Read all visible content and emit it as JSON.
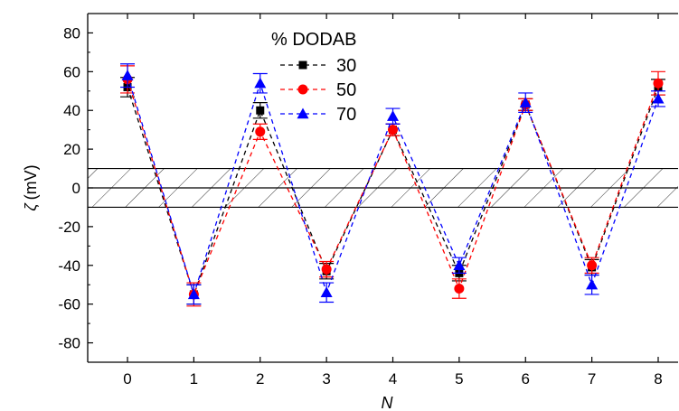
{
  "chart_data": {
    "type": "line",
    "xlabel": "N",
    "ylabel_symbol": "ζ",
    "ylabel_unit": "(mV)",
    "x": [
      0,
      1,
      2,
      3,
      4,
      5,
      6,
      7,
      8
    ],
    "xlim": [
      -0.6,
      8.3
    ],
    "ylim": [
      -90,
      90
    ],
    "x_ticks": [
      "0",
      "1",
      "2",
      "3",
      "4",
      "5",
      "6",
      "7",
      "8"
    ],
    "y_ticks": [
      "80",
      "60",
      "40",
      "20",
      "0",
      "-20",
      "-40",
      "-60",
      "-80"
    ],
    "grid": false,
    "band": {
      "from": -10,
      "to": 10,
      "style": "hatched"
    },
    "legend": {
      "title": "% DODAB",
      "placement": "top-center"
    },
    "series": [
      {
        "name": "30",
        "color": "#000000",
        "marker": "square",
        "values": [
          52,
          -55,
          40,
          -43,
          30,
          -44,
          43,
          -41,
          52
        ],
        "errors": [
          5,
          5,
          4,
          4,
          3,
          4,
          3,
          4,
          4
        ]
      },
      {
        "name": "50",
        "color": "#ff0000",
        "marker": "circle",
        "values": [
          56,
          -55,
          29,
          -42,
          30,
          -52,
          43,
          -40,
          54
        ],
        "errors": [
          7,
          6,
          4,
          4,
          3,
          5,
          3,
          4,
          6
        ]
      },
      {
        "name": "70",
        "color": "#0000ff",
        "marker": "triangle",
        "values": [
          58,
          -55,
          54,
          -54,
          37,
          -40,
          44,
          -50,
          46
        ],
        "errors": [
          6,
          5,
          5,
          5,
          4,
          4,
          5,
          5,
          4
        ]
      }
    ]
  }
}
